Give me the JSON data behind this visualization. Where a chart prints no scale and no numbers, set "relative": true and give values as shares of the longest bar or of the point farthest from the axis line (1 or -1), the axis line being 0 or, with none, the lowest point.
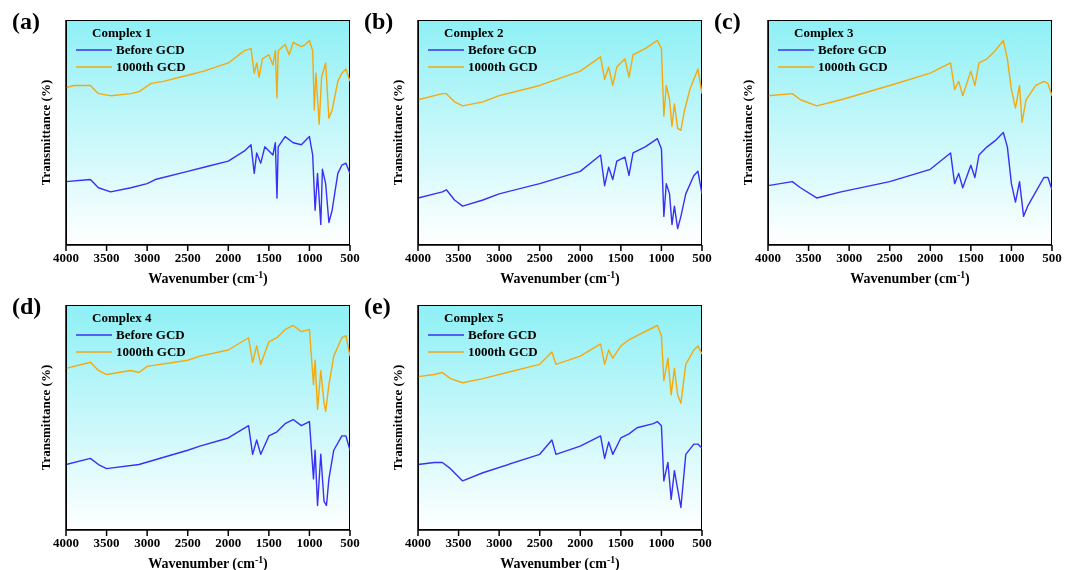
{
  "chart_data": [
    {
      "type": "line",
      "annotations": [
        "(a)"
      ],
      "legend_title": "Complex 1",
      "xlabel": "Wavenumber (cm$^{-1}$)",
      "ylabel": "Transmittance (%)",
      "relative": true,
      "tick_labels": "x",
      "legend": "top left",
      "xlim": [
        4000,
        500
      ],
      "xticks": [
        4000,
        3500,
        3000,
        2500,
        2000,
        1500,
        1000,
        500
      ],
      "series": [
        {
          "name": "Before GCD",
          "color": "#3a2ff5",
          "x": [
            4000,
            3700,
            3600,
            3450,
            3200,
            3000,
            2900,
            2500,
            2300,
            2000,
            1800,
            1720,
            1680,
            1650,
            1600,
            1550,
            1450,
            1420,
            1400,
            1385,
            1300,
            1200,
            1100,
            1000,
            960,
            930,
            900,
            860,
            840,
            800,
            760,
            720,
            650,
            600,
            550,
            500
          ],
          "values": [
            0.31,
            0.32,
            0.28,
            0.26,
            0.28,
            0.3,
            0.32,
            0.36,
            0.38,
            0.41,
            0.46,
            0.49,
            0.35,
            0.45,
            0.4,
            0.48,
            0.44,
            0.5,
            0.23,
            0.48,
            0.53,
            0.5,
            0.49,
            0.53,
            0.44,
            0.17,
            0.35,
            0.1,
            0.37,
            0.3,
            0.11,
            0.17,
            0.35,
            0.39,
            0.4,
            0.35
          ]
        },
        {
          "name": "1000th GCD",
          "color": "#f5a90f",
          "x": [
            4000,
            3900,
            3700,
            3600,
            3450,
            3200,
            3100,
            2950,
            2800,
            2500,
            2300,
            2000,
            1800,
            1720,
            1680,
            1650,
            1620,
            1580,
            1500,
            1450,
            1420,
            1400,
            1385,
            1300,
            1250,
            1200,
            1100,
            1050,
            1000,
            960,
            940,
            920,
            880,
            850,
            800,
            760,
            720,
            650,
            600,
            550,
            500
          ],
          "values": [
            0.77,
            0.78,
            0.78,
            0.74,
            0.73,
            0.74,
            0.75,
            0.79,
            0.8,
            0.83,
            0.85,
            0.89,
            0.95,
            0.96,
            0.84,
            0.89,
            0.82,
            0.91,
            0.93,
            0.88,
            0.95,
            0.72,
            0.95,
            0.98,
            0.93,
            0.99,
            0.97,
            0.98,
            1,
            0.95,
            0.66,
            0.84,
            0.59,
            0.82,
            0.89,
            0.62,
            0.66,
            0.8,
            0.84,
            0.86,
            0.8
          ]
        }
      ]
    },
    {
      "type": "line",
      "annotations": [
        "(b)"
      ],
      "legend_title": "Complex 2",
      "xlabel": "Wavenumber (cm$^{-1}$)",
      "ylabel": "Transmittance (%)",
      "relative": true,
      "tick_labels": "x",
      "legend": "top left",
      "xlim": [
        4000,
        500
      ],
      "xticks": [
        4000,
        3500,
        3000,
        2500,
        2000,
        1500,
        1000,
        500
      ],
      "series": [
        {
          "name": "Before GCD",
          "color": "#3a2ff5",
          "x": [
            4000,
            3700,
            3650,
            3550,
            3450,
            3200,
            3000,
            2500,
            2000,
            1750,
            1700,
            1650,
            1600,
            1550,
            1450,
            1400,
            1350,
            1200,
            1050,
            1000,
            970,
            940,
            900,
            870,
            840,
            800,
            760,
            700,
            600,
            550,
            500
          ],
          "values": [
            0.23,
            0.26,
            0.27,
            0.22,
            0.19,
            0.22,
            0.25,
            0.3,
            0.36,
            0.44,
            0.29,
            0.38,
            0.32,
            0.41,
            0.43,
            0.34,
            0.45,
            0.48,
            0.52,
            0.47,
            0.14,
            0.3,
            0.25,
            0.1,
            0.19,
            0.08,
            0.14,
            0.25,
            0.34,
            0.36,
            0.25
          ]
        },
        {
          "name": "1000th GCD",
          "color": "#f5a90f",
          "x": [
            4000,
            3700,
            3650,
            3550,
            3450,
            3200,
            3000,
            2500,
            2000,
            1750,
            1700,
            1650,
            1600,
            1550,
            1450,
            1400,
            1350,
            1200,
            1050,
            1000,
            970,
            940,
            900,
            870,
            840,
            800,
            760,
            720,
            650,
            550,
            500
          ],
          "values": [
            0.71,
            0.74,
            0.74,
            0.7,
            0.68,
            0.7,
            0.73,
            0.78,
            0.85,
            0.92,
            0.81,
            0.87,
            0.78,
            0.87,
            0.91,
            0.82,
            0.93,
            0.96,
            1,
            0.96,
            0.63,
            0.78,
            0.71,
            0.58,
            0.69,
            0.57,
            0.56,
            0.65,
            0.76,
            0.86,
            0.74
          ]
        }
      ]
    },
    {
      "type": "line",
      "annotations": [
        "(c)"
      ],
      "legend_title": "Complex 3",
      "xlabel": "Wavenumber (cm$^{-1}$)",
      "ylabel": "Transmittance (%)",
      "relative": true,
      "tick_labels": "x",
      "legend": "top left",
      "xlim": [
        4000,
        500
      ],
      "xticks": [
        4000,
        3500,
        3000,
        2500,
        2000,
        1500,
        1000,
        500
      ],
      "series": [
        {
          "name": "Before GCD",
          "color": "#3a2ff5",
          "x": [
            4000,
            3700,
            3600,
            3400,
            3100,
            2500,
            2000,
            1750,
            1700,
            1650,
            1600,
            1500,
            1450,
            1400,
            1300,
            1200,
            1100,
            1050,
            1000,
            950,
            900,
            850,
            800,
            700,
            600,
            550,
            500
          ],
          "values": [
            0.29,
            0.31,
            0.28,
            0.23,
            0.26,
            0.31,
            0.37,
            0.45,
            0.3,
            0.35,
            0.28,
            0.39,
            0.33,
            0.44,
            0.48,
            0.51,
            0.55,
            0.48,
            0.3,
            0.21,
            0.31,
            0.14,
            0.19,
            0.26,
            0.33,
            0.33,
            0.27
          ]
        },
        {
          "name": "1000th GCD",
          "color": "#f5a90f",
          "x": [
            4000,
            3700,
            3600,
            3400,
            3100,
            2500,
            2000,
            1750,
            1700,
            1650,
            1600,
            1500,
            1450,
            1400,
            1300,
            1200,
            1100,
            1050,
            1000,
            950,
            900,
            870,
            820,
            700,
            600,
            550,
            500
          ],
          "values": [
            0.73,
            0.74,
            0.71,
            0.68,
            0.71,
            0.78,
            0.84,
            0.89,
            0.76,
            0.8,
            0.73,
            0.85,
            0.78,
            0.89,
            0.91,
            0.95,
            1,
            0.91,
            0.76,
            0.67,
            0.78,
            0.6,
            0.71,
            0.78,
            0.8,
            0.79,
            0.73
          ]
        }
      ]
    },
    {
      "type": "line",
      "annotations": [
        "(d)"
      ],
      "legend_title": "Complex 4",
      "xlabel": "Wavenumber (cm$^{-1}$)",
      "ylabel": "Transmittance (%)",
      "relative": true,
      "tick_labels": "x",
      "legend": "top left",
      "xlim": [
        4000,
        500
      ],
      "xticks": [
        4000,
        3500,
        3000,
        2500,
        2000,
        1500,
        1000,
        500
      ],
      "series": [
        {
          "name": "Before GCD",
          "color": "#3a2ff5",
          "x": [
            4000,
            3700,
            3600,
            3500,
            3100,
            2500,
            2350,
            2000,
            1750,
            1700,
            1650,
            1600,
            1500,
            1400,
            1300,
            1200,
            1100,
            1000,
            950,
            930,
            900,
            860,
            820,
            790,
            760,
            700,
            600,
            550,
            500
          ],
          "values": [
            0.32,
            0.35,
            0.32,
            0.3,
            0.32,
            0.39,
            0.41,
            0.45,
            0.51,
            0.37,
            0.44,
            0.37,
            0.46,
            0.48,
            0.52,
            0.54,
            0.51,
            0.53,
            0.25,
            0.39,
            0.12,
            0.37,
            0.14,
            0.12,
            0.25,
            0.39,
            0.46,
            0.46,
            0.39
          ]
        },
        {
          "name": "1000th GCD",
          "color": "#f5a90f",
          "x": [
            4000,
            3700,
            3600,
            3500,
            3200,
            3100,
            3000,
            2500,
            2350,
            2000,
            1750,
            1700,
            1650,
            1600,
            1500,
            1400,
            1300,
            1200,
            1100,
            1000,
            950,
            930,
            900,
            860,
            820,
            800,
            760,
            700,
            600,
            550,
            500
          ],
          "values": [
            0.79,
            0.82,
            0.78,
            0.76,
            0.78,
            0.77,
            0.8,
            0.83,
            0.85,
            0.88,
            0.94,
            0.82,
            0.9,
            0.81,
            0.92,
            0.94,
            0.98,
            1,
            0.97,
            0.98,
            0.71,
            0.83,
            0.59,
            0.78,
            0.62,
            0.58,
            0.71,
            0.85,
            0.94,
            0.95,
            0.85
          ]
        }
      ]
    },
    {
      "type": "line",
      "annotations": [
        "(e)"
      ],
      "legend_title": "Complex 5",
      "xlabel": "Wavenumber (cm$^{-1}$)",
      "ylabel": "Transmittance (%)",
      "relative": true,
      "tick_labels": "x",
      "legend": "top left",
      "xlim": [
        4000,
        500
      ],
      "xticks": [
        4000,
        3500,
        3000,
        2500,
        2000,
        1500,
        1000,
        500
      ],
      "series": [
        {
          "name": "Before GCD",
          "color": "#3a2ff5",
          "x": [
            4000,
            3800,
            3700,
            3600,
            3450,
            3200,
            2500,
            2350,
            2300,
            2000,
            1750,
            1700,
            1650,
            1600,
            1500,
            1400,
            1300,
            1100,
            1050,
            1000,
            970,
            920,
            880,
            840,
            800,
            760,
            700,
            600,
            550,
            500
          ],
          "values": [
            0.32,
            0.33,
            0.33,
            0.3,
            0.24,
            0.28,
            0.37,
            0.44,
            0.37,
            0.41,
            0.46,
            0.35,
            0.43,
            0.37,
            0.45,
            0.47,
            0.5,
            0.52,
            0.53,
            0.51,
            0.24,
            0.33,
            0.15,
            0.29,
            0.2,
            0.11,
            0.37,
            0.42,
            0.42,
            0.4
          ]
        },
        {
          "name": "1000th GCD",
          "color": "#f5a90f",
          "x": [
            4000,
            3800,
            3700,
            3600,
            3450,
            3200,
            2500,
            2350,
            2300,
            2000,
            1750,
            1700,
            1650,
            1600,
            1500,
            1400,
            1300,
            1100,
            1050,
            1000,
            970,
            920,
            880,
            840,
            800,
            760,
            700,
            600,
            550,
            500
          ],
          "values": [
            0.75,
            0.76,
            0.77,
            0.74,
            0.72,
            0.74,
            0.81,
            0.87,
            0.81,
            0.85,
            0.91,
            0.81,
            0.88,
            0.84,
            0.9,
            0.93,
            0.95,
            0.99,
            1,
            0.95,
            0.73,
            0.84,
            0.66,
            0.79,
            0.66,
            0.62,
            0.81,
            0.88,
            0.9,
            0.86
          ]
        }
      ]
    }
  ]
}
